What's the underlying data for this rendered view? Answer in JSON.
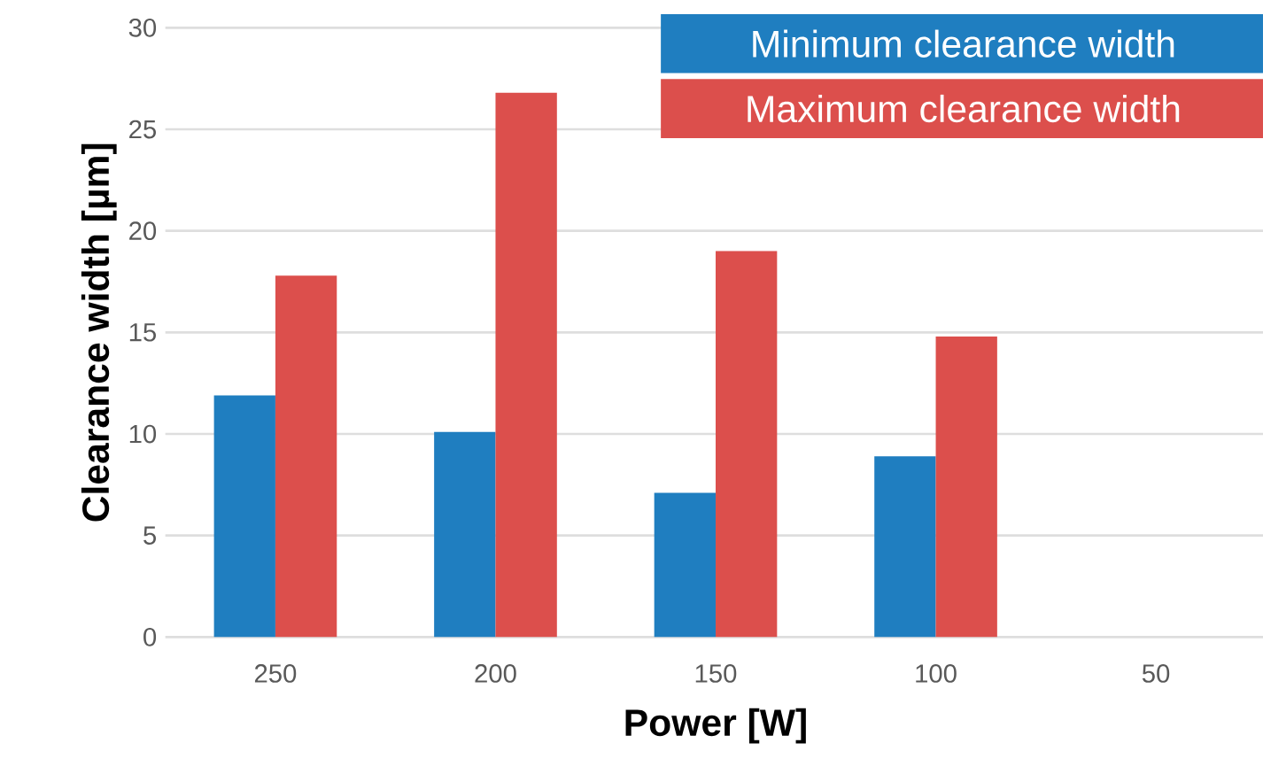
{
  "chart_data": {
    "type": "bar",
    "xlabel": "Power [W]",
    "ylabel": "Clearance width [µm]",
    "categories": [
      "250",
      "200",
      "150",
      "100",
      "50"
    ],
    "series": [
      {
        "name": "Minimum clearance width",
        "color": "#1f7ec0",
        "values": [
          11.9,
          10.1,
          7.1,
          8.9,
          null
        ]
      },
      {
        "name": "Maximum clearance width",
        "color": "#dc4f4c",
        "values": [
          17.8,
          26.8,
          19.0,
          14.8,
          null
        ]
      }
    ],
    "ylim": [
      0,
      30
    ],
    "yticks": [
      0,
      5,
      10,
      15,
      20,
      25,
      30
    ],
    "grid": "y",
    "legend": "top right"
  }
}
